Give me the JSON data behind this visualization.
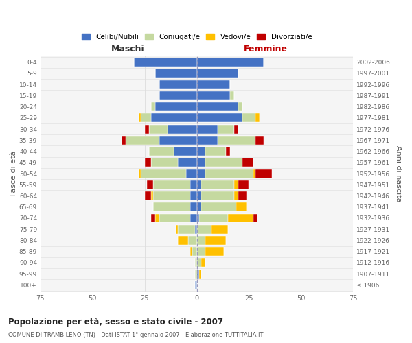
{
  "age_groups": [
    "100+",
    "95-99",
    "90-94",
    "85-89",
    "80-84",
    "75-79",
    "70-74",
    "65-69",
    "60-64",
    "55-59",
    "50-54",
    "45-49",
    "40-44",
    "35-39",
    "30-34",
    "25-29",
    "20-24",
    "15-19",
    "10-14",
    "5-9",
    "0-4"
  ],
  "birth_years": [
    "≤ 1906",
    "1907-1911",
    "1912-1916",
    "1917-1921",
    "1922-1926",
    "1927-1931",
    "1932-1936",
    "1937-1941",
    "1942-1946",
    "1947-1951",
    "1952-1956",
    "1957-1961",
    "1962-1966",
    "1967-1971",
    "1972-1976",
    "1977-1981",
    "1982-1986",
    "1987-1991",
    "1992-1996",
    "1997-2001",
    "2002-2006"
  ],
  "maschi": {
    "celibi": [
      1,
      0,
      0,
      0,
      0,
      1,
      3,
      3,
      3,
      3,
      5,
      9,
      11,
      18,
      14,
      22,
      20,
      18,
      18,
      20,
      30
    ],
    "coniugati": [
      0,
      1,
      1,
      2,
      4,
      8,
      15,
      18,
      18,
      18,
      22,
      13,
      12,
      16,
      9,
      5,
      2,
      0,
      0,
      0,
      0
    ],
    "vedovi": [
      0,
      0,
      0,
      1,
      5,
      1,
      2,
      0,
      1,
      0,
      1,
      0,
      0,
      0,
      0,
      1,
      0,
      0,
      0,
      0,
      0
    ],
    "divorziati": [
      0,
      0,
      0,
      0,
      0,
      0,
      2,
      0,
      3,
      3,
      0,
      3,
      0,
      2,
      2,
      0,
      0,
      0,
      0,
      0,
      0
    ]
  },
  "femmine": {
    "nubili": [
      0,
      1,
      0,
      0,
      0,
      0,
      1,
      2,
      2,
      2,
      4,
      4,
      4,
      10,
      10,
      22,
      20,
      16,
      16,
      20,
      32
    ],
    "coniugate": [
      0,
      0,
      2,
      4,
      4,
      7,
      14,
      17,
      16,
      16,
      23,
      18,
      10,
      18,
      8,
      6,
      2,
      2,
      0,
      0,
      0
    ],
    "vedove": [
      0,
      1,
      2,
      9,
      10,
      8,
      12,
      5,
      2,
      2,
      1,
      0,
      0,
      0,
      0,
      2,
      0,
      0,
      0,
      0,
      0
    ],
    "divorziate": [
      0,
      0,
      0,
      0,
      0,
      0,
      2,
      0,
      4,
      5,
      8,
      5,
      2,
      4,
      2,
      0,
      0,
      0,
      0,
      0,
      0
    ]
  },
  "colors": {
    "celibi": "#4472c4",
    "coniugati": "#c5d9a0",
    "vedovi": "#ffc000",
    "divorziati": "#c00000"
  },
  "xlim": 75,
  "title": "Popolazione per età, sesso e stato civile - 2007",
  "subtitle": "COMUNE DI TRAMBILENO (TN) - Dati ISTAT 1° gennaio 2007 - Elaborazione TUTTITALIA.IT",
  "ylabel_left": "Fasce di età",
  "ylabel_right": "Anni di nascita",
  "xlabel_left": "Maschi",
  "xlabel_right": "Femmine",
  "bg_color": "#f5f5f5"
}
